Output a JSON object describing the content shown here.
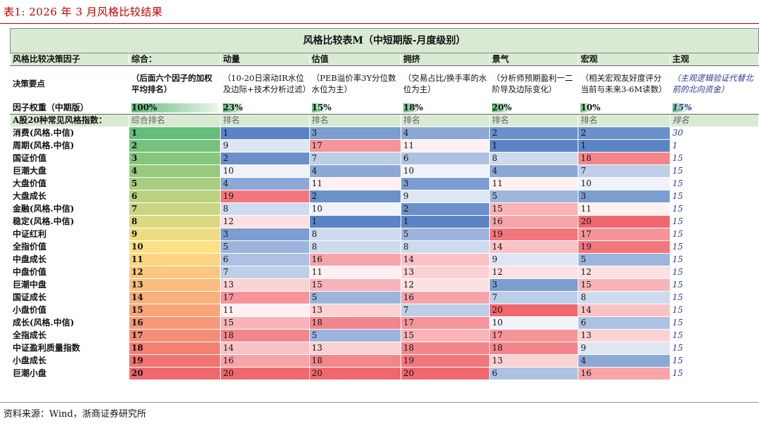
{
  "caption": "表1:  2026 年 3 月风格比较结果",
  "table_title": "风格比较表M（中短期版-月度级别）",
  "headers": [
    "风格比较决策因子",
    "综合：",
    "动量",
    "估值",
    "拥挤",
    "景气",
    "宏观",
    "主观"
  ],
  "key_row": {
    "label": "决策要点",
    "cells": [
      "（后面六个因子的加权平均排名）",
      "（10-20日滚动IR水位及边际+技术分析过滤）",
      "（PEB溢价率3Y分位数水位为主）",
      "（交易占比/换手率的水位为主）",
      "（分析师预期盈利一二阶导及边际变化）",
      "（相关宏观友好度评分当前与未来3-6M读数）",
      "（主观逻辑验证代替北前的北向资金）"
    ]
  },
  "weight_row": {
    "label": "因子权重（中期版）",
    "cells": [
      "100%",
      "23%",
      "15%",
      "18%",
      "20%",
      "10%",
      "15%"
    ],
    "fractions": [
      1.0,
      0.23,
      0.15,
      0.18,
      0.2,
      0.1,
      0.15
    ]
  },
  "sub_row": {
    "label": "A股20种常见风格指数：",
    "cells": [
      "综合排名",
      "排名",
      "排名",
      "排名",
      "排名",
      "排名",
      "排名"
    ]
  },
  "rows": [
    {
      "name": "消费(风格.中信)",
      "v": [
        1,
        1,
        3,
        4,
        2,
        2,
        30
      ]
    },
    {
      "name": "周期(风格.中信)",
      "v": [
        2,
        9,
        17,
        11,
        1,
        1,
        1
      ]
    },
    {
      "name": "国证价值",
      "v": [
        3,
        2,
        7,
        6,
        8,
        18,
        15
      ]
    },
    {
      "name": "巨潮大盘",
      "v": [
        4,
        10,
        4,
        10,
        4,
        7,
        15
      ]
    },
    {
      "name": "大盘价值",
      "v": [
        5,
        4,
        11,
        3,
        11,
        10,
        15
      ]
    },
    {
      "name": "大盘成长",
      "v": [
        6,
        19,
        2,
        9,
        5,
        3,
        15
      ]
    },
    {
      "name": "金融(风格.中信)",
      "v": [
        7,
        8,
        10,
        2,
        15,
        11,
        15
      ]
    },
    {
      "name": "稳定(风格.中信)",
      "v": [
        8,
        12,
        1,
        1,
        16,
        20,
        15
      ]
    },
    {
      "name": "中证红利",
      "v": [
        9,
        3,
        8,
        5,
        19,
        17,
        15
      ]
    },
    {
      "name": "全指价值",
      "v": [
        10,
        5,
        8,
        8,
        14,
        19,
        15
      ]
    },
    {
      "name": "中盘成长",
      "v": [
        11,
        6,
        16,
        14,
        9,
        5,
        15
      ]
    },
    {
      "name": "中盘价值",
      "v": [
        12,
        7,
        11,
        13,
        12,
        12,
        15
      ]
    },
    {
      "name": "巨潮中盘",
      "v": [
        13,
        13,
        15,
        12,
        3,
        15,
        15
      ]
    },
    {
      "name": "国证成长",
      "v": [
        14,
        17,
        5,
        16,
        7,
        8,
        15
      ]
    },
    {
      "name": "小盘价值",
      "v": [
        15,
        11,
        13,
        7,
        20,
        14,
        15
      ]
    },
    {
      "name": "成长(风格.中信)",
      "v": [
        16,
        15,
        18,
        17,
        10,
        6,
        15
      ]
    },
    {
      "name": "全指成长",
      "v": [
        17,
        18,
        5,
        15,
        17,
        13,
        15
      ]
    },
    {
      "name": "中证盈利质量指数",
      "v": [
        18,
        14,
        13,
        18,
        18,
        9,
        15
      ]
    },
    {
      "name": "小盘成长",
      "v": [
        19,
        16,
        18,
        19,
        13,
        4,
        15
      ]
    },
    {
      "name": "巨潮小盘",
      "v": [
        20,
        20,
        20,
        20,
        6,
        16,
        15
      ]
    }
  ],
  "source": "资料来源：Wind，浙商证券研究所",
  "colors": {
    "accent": "#c00000",
    "header_bg": "#d9ead3",
    "blue": "#5b84c4",
    "red": "#f0686e",
    "green": "#63be7b",
    "yellow": "#ffe084"
  }
}
